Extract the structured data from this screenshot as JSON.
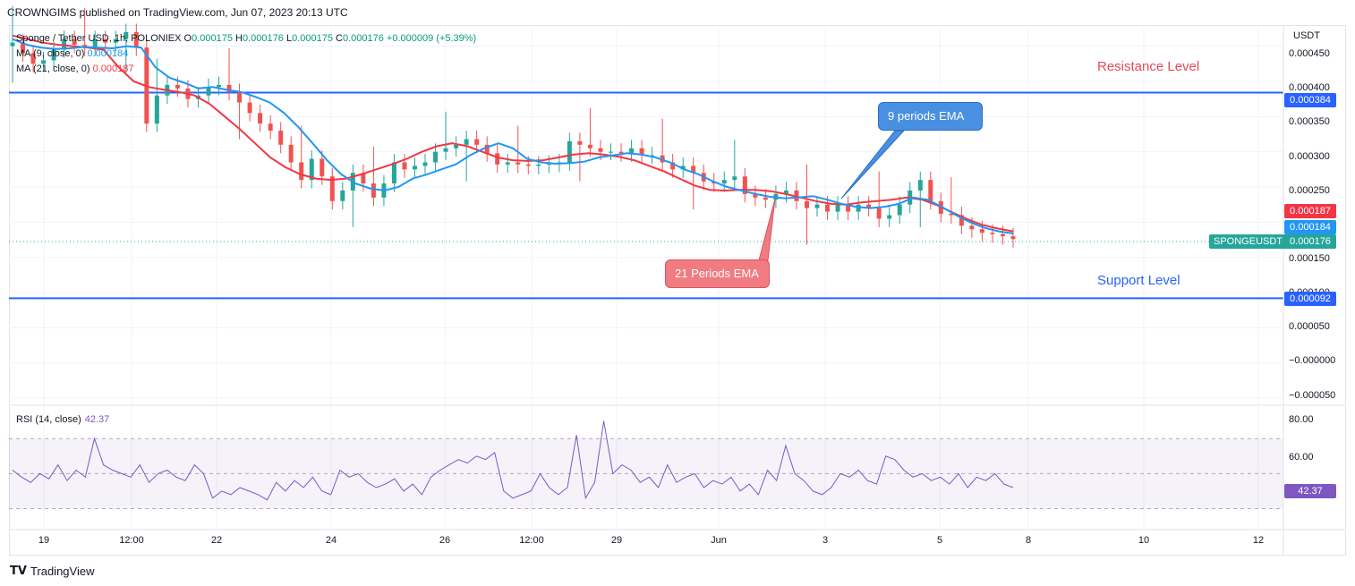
{
  "caption": "CROWNGIMS published on TradingView.com, Jun 07, 2023 20:13 UTC",
  "legend": {
    "symbol": "Sponge / Tether USD, 1h, POLONIEX",
    "o_label": "O",
    "o_val": "0.000175",
    "h_label": "H",
    "h_val": "0.000176",
    "l_label": "L",
    "l_val": "0.000175",
    "c_label": "C",
    "c_val": "0.000176",
    "change": "+0.000009 (+5.39%)",
    "ma9_label": "MA (9, close, 0)",
    "ma9_val": "0.000184",
    "ma21_label": "MA (21, close, 0)",
    "ma21_val": "0.000187"
  },
  "rsi": {
    "label": "RSI (14, close)",
    "value": "42.37",
    "axis": [
      "80.00",
      "60.00"
    ]
  },
  "annotations": {
    "resistance": "Resistance Level",
    "support": "Support Level",
    "ema9": "9 periods EMA",
    "ema21": "21 Periods EMA"
  },
  "price_axis": {
    "unit": "USDT",
    "ticks": [
      "0.000450",
      "0.000400",
      "0.000350",
      "0.000300",
      "0.000250",
      "0.000150",
      "0.000100",
      "0.000050",
      "−0.000000",
      "−0.000050"
    ],
    "labels": {
      "resistance": "0.000384",
      "ma21": "0.000187",
      "ma9": "0.000184",
      "last": "0.000176",
      "support": "0.000092"
    },
    "symbol_tag": "SPONGEUSDT"
  },
  "time_axis": [
    "19",
    "12:00",
    "22",
    "24",
    "26",
    "12:00",
    "29",
    "Jun",
    "3",
    "5",
    "8",
    "10",
    "12"
  ],
  "footer": "TradingView",
  "colors": {
    "up": "#26a69a",
    "down": "#ef5350",
    "ma9": "#2196f3",
    "ma21": "#f23645",
    "level": "#2962ff",
    "rsi": "#7e57c2"
  },
  "chart_data": {
    "type": "candlestick",
    "ylim": [
      -6e-05,
      0.00048
    ],
    "horizontal_levels": [
      {
        "name": "Resistance Level",
        "value": 0.000384
      },
      {
        "name": "Support Level",
        "value": 9.2e-05
      }
    ],
    "close_series": [
      0.000455,
      0.00044,
      0.000425,
      0.00043,
      0.000445,
      0.00046,
      0.000452,
      0.000448,
      0.00046,
      0.000455,
      0.00046,
      0.00047,
      0.000448,
      0.00034,
      0.00038,
      0.000395,
      0.00039,
      0.000375,
      0.00038,
      0.000392,
      0.000395,
      0.000385,
      0.00037,
      0.000355,
      0.00034,
      0.00033,
      0.00031,
      0.000285,
      0.00026,
      0.00029,
      0.000265,
      0.00023,
      0.000245,
      0.00027,
      0.000255,
      0.000235,
      0.000255,
      0.000285,
      0.000275,
      0.00028,
      0.000285,
      0.0003,
      0.000305,
      0.00031,
      0.000318,
      0.00031,
      0.000298,
      0.000282,
      0.000285,
      0.000282,
      0.00028,
      0.000282,
      0.000283,
      0.000285,
      0.000315,
      0.00031,
      0.000305,
      0.0003,
      0.0003,
      0.000298,
      0.000305,
      0.000295,
      0.000295,
      0.000285,
      0.000275,
      0.00028,
      0.00027,
      0.000258,
      0.000255,
      0.00026,
      0.000265,
      0.00024,
      0.000235,
      0.000232,
      0.00024,
      0.000245,
      0.00023,
      0.00022,
      0.000225,
      0.000215,
      0.000225,
      0.000215,
      0.000225,
      0.00022,
      0.000205,
      0.00021,
      0.000225,
      0.000245,
      0.00026,
      0.00023,
      0.000212,
      0.00021,
      0.000195,
      0.00019,
      0.000185,
      0.000183,
      0.00018,
      0.000176
    ],
    "ma9_series": [
      0.00046,
      0.000452,
      0.000448,
      0.000446,
      0.000447,
      0.000449,
      0.000448,
      0.000447,
      0.00045,
      0.000448,
      0.00042,
      0.000405,
      0.000398,
      0.00039,
      0.000392,
      0.000388,
      0.000385,
      0.000378,
      0.00037,
      0.000355,
      0.000335,
      0.000312,
      0.000288,
      0.000268,
      0.000255,
      0.000248,
      0.000245,
      0.00025,
      0.000262,
      0.000268,
      0.000275,
      0.000282,
      0.000295,
      0.000305,
      0.000312,
      0.000305,
      0.00029,
      0.000285,
      0.000283,
      0.000284,
      0.000286,
      0.000292,
      0.000295,
      0.000298,
      0.000296,
      0.000292,
      0.000285,
      0.000275,
      0.000268,
      0.000258,
      0.00025,
      0.000245,
      0.00024,
      0.000236,
      0.000234,
      0.000235,
      0.000237,
      0.000232,
      0.000226,
      0.000222,
      0.00022,
      0.000222,
      0.000226,
      0.000235,
      0.000232,
      0.000222,
      0.00021,
      0.0002,
      0.000192,
      0.000187,
      0.000184
    ],
    "ma21_series": [
      0.000465,
      0.00046,
      0.000455,
      0.000452,
      0.00045,
      0.000448,
      0.000445,
      0.00042,
      0.0004,
      0.000392,
      0.000388,
      0.000385,
      0.00038,
      0.000368,
      0.00035,
      0.000332,
      0.000312,
      0.000292,
      0.000278,
      0.000268,
      0.000262,
      0.00026,
      0.000262,
      0.000268,
      0.000275,
      0.000282,
      0.00029,
      0.0003,
      0.000308,
      0.000312,
      0.000308,
      0.0003,
      0.000292,
      0.000288,
      0.000287,
      0.000288,
      0.000292,
      0.000296,
      0.000298,
      0.000296,
      0.000293,
      0.000288,
      0.00028,
      0.000272,
      0.000262,
      0.000252,
      0.000246,
      0.000245,
      0.000246,
      0.000246,
      0.000244,
      0.00024,
      0.000235,
      0.00023,
      0.000226,
      0.000225,
      0.000228,
      0.00023,
      0.000232,
      0.000235,
      0.000232,
      0.000224,
      0.000214,
      0.000204,
      0.000196,
      0.000191,
      0.000187
    ],
    "rsi_series": [
      52,
      48,
      45,
      50,
      47,
      55,
      46,
      52,
      48,
      70,
      55,
      52,
      50,
      48,
      55,
      45,
      50,
      52,
      48,
      46,
      55,
      50,
      36,
      40,
      38,
      42,
      40,
      38,
      35,
      45,
      40,
      46,
      42,
      48,
      40,
      38,
      52,
      48,
      50,
      45,
      42,
      44,
      47,
      40,
      44,
      38,
      48,
      52,
      55,
      58,
      56,
      60,
      58,
      62,
      40,
      36,
      38,
      40,
      50,
      42,
      38,
      42,
      72,
      36,
      45,
      80,
      50,
      55,
      52,
      45,
      48,
      42,
      55,
      45,
      48,
      50,
      42,
      46,
      44,
      48,
      40,
      44,
      38,
      52,
      46,
      66,
      50,
      46,
      40,
      38,
      42,
      50,
      48,
      52,
      46,
      44,
      60,
      58,
      52,
      48,
      50,
      46,
      48,
      44,
      50,
      42,
      48,
      46,
      50,
      44,
      42
    ]
  }
}
